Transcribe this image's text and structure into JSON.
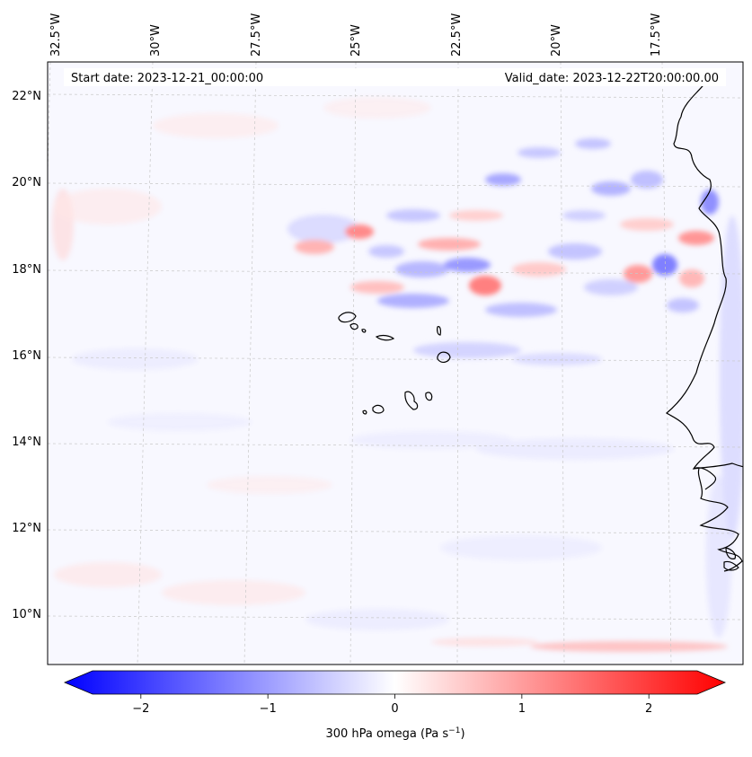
{
  "map": {
    "start_date": "Start date: 2023-12-21_00:00:00",
    "valid_date": "Valid_date: 2023-12-22T20:00:00.00",
    "lon_labels": [
      "32.5°W",
      "30°W",
      "27.5°W",
      "25°W",
      "22.5°W",
      "20°W",
      "17.5°W"
    ],
    "lat_labels": [
      "22°N",
      "20°N",
      "18°N",
      "16°N",
      "14°N",
      "12°N",
      "10°N"
    ]
  },
  "colorbar": {
    "label_main": "300 hPa omega (Pa s",
    "label_exp": "−1",
    "label_close": ")",
    "ticks": [
      "−2",
      "−1",
      "0",
      "1",
      "2"
    ],
    "range": [
      -2.6,
      2.6
    ]
  },
  "colors": {
    "negative": "#0000ff",
    "neutral": "#ffffff",
    "positive": "#ff0000",
    "coast": "#000000",
    "grid": "#c8c8c8"
  }
}
